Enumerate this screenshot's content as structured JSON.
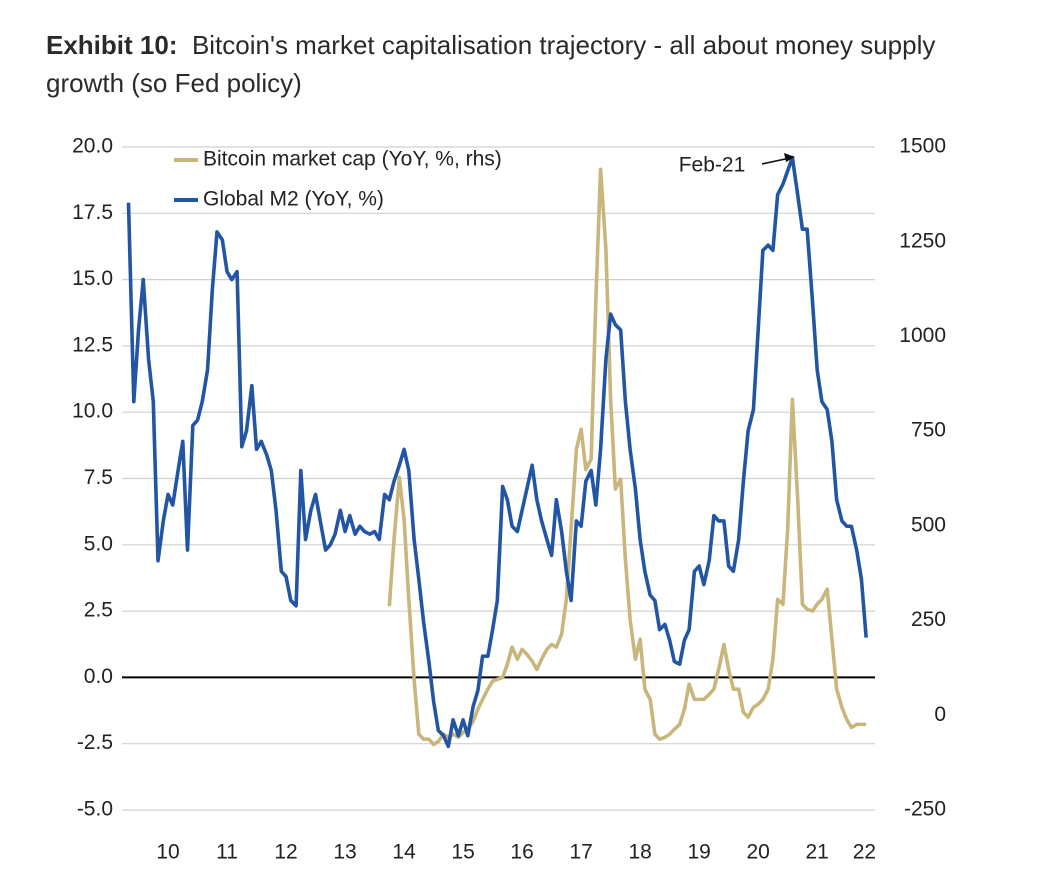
{
  "chart_data": {
    "type": "line",
    "title_prefix": "Exhibit 10:",
    "title": "Bitcoin's market capitalisation trajectory - all about money supply growth (so Fed policy)",
    "annotation": "Feb-21",
    "x": [
      2009.83,
      2009.92,
      2010.0,
      2010.08,
      2010.17,
      2010.25,
      2010.33,
      2010.42,
      2010.5,
      2010.58,
      2010.67,
      2010.75,
      2010.83,
      2010.92,
      2011.0,
      2011.08,
      2011.17,
      2011.25,
      2011.33,
      2011.42,
      2011.5,
      2011.58,
      2011.67,
      2011.75,
      2011.83,
      2011.92,
      2012.0,
      2012.08,
      2012.17,
      2012.25,
      2012.33,
      2012.42,
      2012.5,
      2012.58,
      2012.67,
      2012.75,
      2012.83,
      2012.92,
      2013.0,
      2013.08,
      2013.17,
      2013.25,
      2013.33,
      2013.42,
      2013.5,
      2013.58,
      2013.67,
      2013.75,
      2013.83,
      2013.92,
      2014.0,
      2014.08,
      2014.17,
      2014.25,
      2014.33,
      2014.42,
      2014.5,
      2014.58,
      2014.67,
      2014.75,
      2014.83,
      2014.92,
      2015.0,
      2015.08,
      2015.17,
      2015.25,
      2015.33,
      2015.42,
      2015.5,
      2015.58,
      2015.67,
      2015.75,
      2015.83,
      2015.92,
      2016.0,
      2016.08,
      2016.17,
      2016.25,
      2016.33,
      2016.42,
      2016.5,
      2016.58,
      2016.67,
      2016.75,
      2016.83,
      2016.92,
      2017.0,
      2017.08,
      2017.17,
      2017.25,
      2017.33,
      2017.42,
      2017.5,
      2017.58,
      2017.67,
      2017.75,
      2017.83,
      2017.92,
      2018.0,
      2018.08,
      2018.17,
      2018.25,
      2018.33,
      2018.42,
      2018.5,
      2018.58,
      2018.67,
      2018.75,
      2018.83,
      2018.92,
      2019.0,
      2019.08,
      2019.17,
      2019.25,
      2019.33,
      2019.42,
      2019.5,
      2019.58,
      2019.67,
      2019.75,
      2019.83,
      2019.92,
      2020.0,
      2020.08,
      2020.17,
      2020.25,
      2020.33,
      2020.42,
      2020.5,
      2020.58,
      2020.67,
      2020.75,
      2020.83,
      2020.92,
      2021.0,
      2021.08,
      2021.17,
      2021.25,
      2021.33,
      2021.42,
      2021.5,
      2021.58,
      2021.67,
      2021.75,
      2021.83,
      2021.92,
      2022.0,
      2022.08,
      2022.17,
      2022.25,
      2022.33
    ],
    "series": [
      {
        "name": "Bitcoin market cap (YoY, %, rhs)",
        "color": "#c8b67c",
        "axis": "y2",
        "values": [
          null,
          null,
          null,
          null,
          null,
          null,
          null,
          null,
          null,
          null,
          null,
          null,
          null,
          null,
          null,
          null,
          null,
          null,
          null,
          null,
          null,
          null,
          null,
          null,
          null,
          null,
          null,
          null,
          null,
          null,
          null,
          null,
          null,
          null,
          null,
          null,
          null,
          null,
          null,
          null,
          null,
          null,
          null,
          null,
          null,
          null,
          null,
          null,
          null,
          null,
          null,
          null,
          null,
          288,
          465,
          628,
          517,
          306,
          95,
          -50,
          -63,
          -63,
          -77,
          -69,
          -50,
          -58,
          -50,
          -58,
          -45,
          -37,
          -16,
          16,
          42,
          69,
          90,
          95,
          100,
          135,
          180,
          148,
          174,
          161,
          143,
          121,
          148,
          174,
          187,
          180,
          214,
          306,
          491,
          702,
          755,
          649,
          676,
          1098,
          1441,
          1230,
          834,
          597,
          623,
          412,
          253,
          148,
          201,
          69,
          42,
          -50,
          -63,
          -58,
          -50,
          -37,
          -24,
          16,
          82,
          42,
          42,
          42,
          55,
          69,
          121,
          187,
          121,
          69,
          69,
          8,
          -5,
          21,
          29,
          42,
          69,
          148,
          306,
          293,
          491,
          834,
          570,
          293,
          280,
          275,
          293,
          306,
          333,
          201,
          69,
          21,
          -11,
          -32,
          -24,
          -24,
          -24
        ]
      },
      {
        "name": "Global M2 (YoY, %)",
        "color": "#2256a4",
        "values": [
          17.9,
          10.4,
          13.1,
          15.0,
          12.0,
          10.4,
          4.4,
          5.9,
          6.9,
          6.5,
          7.8,
          8.9,
          4.8,
          9.5,
          9.7,
          10.4,
          11.6,
          14.6,
          16.8,
          16.5,
          15.3,
          15.0,
          15.3,
          8.7,
          9.3,
          11.0,
          8.6,
          8.9,
          8.4,
          7.8,
          6.3,
          4.0,
          3.8,
          2.9,
          2.7,
          7.8,
          5.2,
          6.3,
          6.9,
          5.9,
          4.8,
          5.0,
          5.4,
          6.3,
          5.5,
          6.1,
          5.4,
          5.7,
          5.5,
          5.4,
          5.5,
          5.2,
          6.9,
          6.7,
          7.4,
          8.0,
          8.6,
          7.8,
          5.2,
          3.7,
          2.1,
          0.6,
          -0.9,
          -2.0,
          -2.2,
          -2.6,
          -1.6,
          -2.2,
          -1.6,
          -2.2,
          -1.1,
          -0.5,
          0.8,
          0.8,
          1.8,
          2.9,
          7.2,
          6.7,
          5.7,
          5.5,
          6.3,
          7.1,
          8.0,
          6.7,
          5.9,
          5.2,
          4.6,
          6.7,
          5.5,
          4.0,
          2.9,
          5.9,
          5.7,
          7.4,
          7.8,
          6.5,
          8.6,
          12.0,
          13.7,
          13.3,
          13.1,
          10.4,
          8.6,
          7.1,
          5.2,
          4.0,
          3.1,
          2.9,
          1.8,
          2.0,
          1.4,
          0.6,
          0.5,
          1.4,
          1.8,
          4.0,
          4.2,
          3.5,
          4.4,
          6.1,
          5.9,
          5.9,
          4.2,
          4.0,
          5.2,
          7.4,
          9.3,
          10.1,
          13.1,
          16.1,
          16.3,
          16.1,
          18.2,
          18.6,
          19.1,
          19.6,
          18.2,
          16.9,
          16.9,
          14.2,
          11.6,
          10.4,
          10.1,
          8.9,
          6.7,
          5.9,
          5.7,
          5.7,
          4.8,
          3.7,
          1.5
        ]
      }
    ],
    "xlim": [
      2009.72,
      2022.48
    ],
    "xticks": [
      {
        "value": 2010.5,
        "label": "10"
      },
      {
        "value": 2011.5,
        "label": "11"
      },
      {
        "value": 2012.5,
        "label": "12"
      },
      {
        "value": 2013.5,
        "label": "13"
      },
      {
        "value": 2014.5,
        "label": "14"
      },
      {
        "value": 2015.5,
        "label": "15"
      },
      {
        "value": 2016.5,
        "label": "16"
      },
      {
        "value": 2017.5,
        "label": "17"
      },
      {
        "value": 2018.5,
        "label": "18"
      },
      {
        "value": 2019.5,
        "label": "19"
      },
      {
        "value": 2020.5,
        "label": "20"
      },
      {
        "value": 2021.5,
        "label": "21"
      },
      {
        "value": 2022.3,
        "label": "22"
      }
    ],
    "ylim": [
      -5,
      20
    ],
    "yticks": [
      {
        "value": -5,
        "label": "-5.0"
      },
      -2.5,
      {
        "value": 0,
        "label": "0.0"
      },
      2.5,
      {
        "value": 5,
        "label": "5.0"
      },
      7.5,
      {
        "value": 10,
        "label": "10.0"
      },
      12.5,
      {
        "value": 15,
        "label": "15.0"
      },
      17.5,
      {
        "value": 20,
        "label": "20.0"
      }
    ],
    "y2lim": [
      -250,
      1500
    ],
    "y2ticks": [
      -250,
      0,
      250,
      500,
      750,
      1000,
      1250,
      1500
    ],
    "grid": true,
    "grid_color": "#d0d0d0",
    "zero_line_color": "#000000",
    "legend": "upper left"
  }
}
